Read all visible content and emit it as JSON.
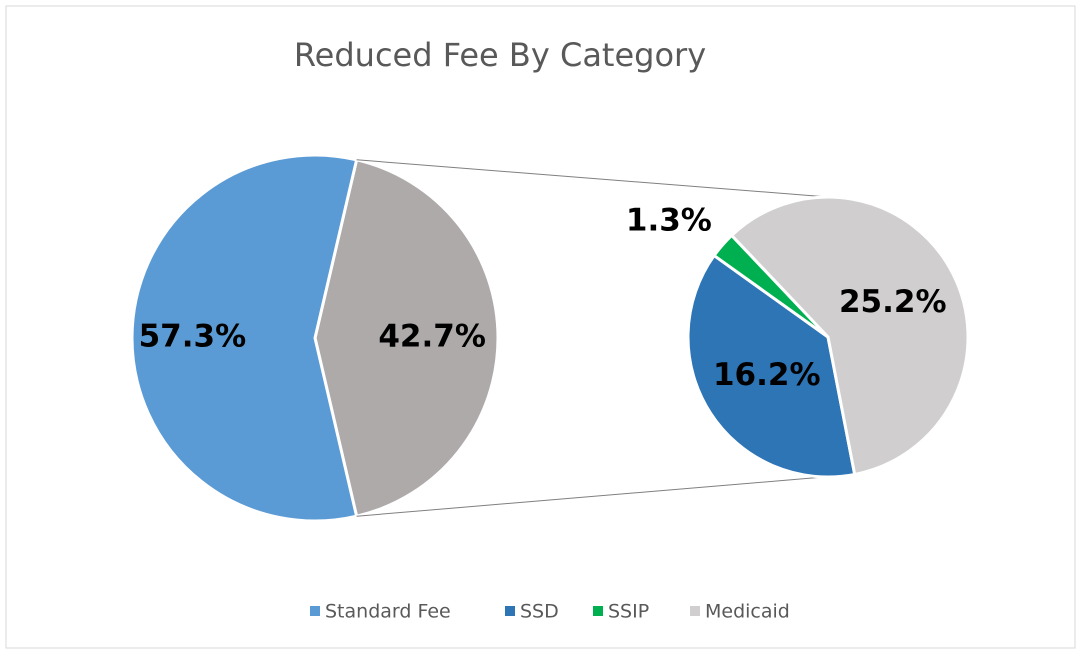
{
  "chart_data": {
    "type": "pie",
    "title": "Reduced Fee By Category",
    "categories": [
      "Standard Fee",
      "SSD",
      "SSIP",
      "Medicaid"
    ],
    "values": [
      57.3,
      16.2,
      1.3,
      25.2
    ],
    "value_labels": [
      "57.3%",
      "16.2%",
      "1.3%",
      "25.2%"
    ],
    "colors": [
      "#5b9bd5",
      "#2e75b6",
      "#00b050",
      "#d0cece"
    ],
    "secondary": [
      1,
      2,
      3
    ],
    "other_value": 42.7,
    "other_label": "42.7%",
    "other_color": "#aeaaaa",
    "legend": "bottom"
  }
}
